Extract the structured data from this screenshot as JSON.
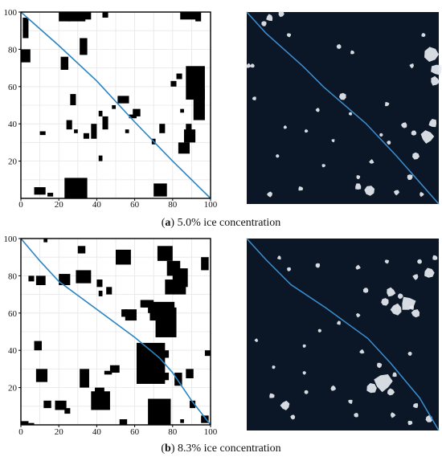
{
  "figure": {
    "panels": [
      {
        "id": "a",
        "caption_label": "a",
        "caption_text": "5.0% ice concentration",
        "grid_chart": {
          "type": "scatter",
          "xlim": [
            0,
            100
          ],
          "ylim": [
            0,
            100
          ],
          "x_ticks": [
            "0",
            "20",
            "40",
            "60",
            "80",
            "100"
          ],
          "y_ticks": [
            "20",
            "40",
            "60",
            "80",
            "100"
          ],
          "grid": true,
          "path": [
            [
              0,
              100
            ],
            [
              20,
              82
            ],
            [
              40,
              63
            ],
            [
              60,
              41
            ],
            [
              80,
              20
            ],
            [
              100,
              0
            ]
          ],
          "obstacles": [
            [
              1,
              97,
              4,
              86
            ],
            [
              0,
              80,
              5,
              73
            ],
            [
              20,
              100,
              26,
              95
            ],
            [
              25,
              100,
              34,
              95
            ],
            [
              33,
              100,
              37,
              96
            ],
            [
              43,
              100,
              46,
              97
            ],
            [
              84,
              100,
              93,
              96
            ],
            [
              92,
              100,
              95,
              95
            ],
            [
              31,
              86,
              35,
              77
            ],
            [
              21,
              76,
              25,
              69
            ],
            [
              26,
              56,
              29,
              50
            ],
            [
              24,
              42,
              27,
              37
            ],
            [
              28,
              37,
              30,
              35
            ],
            [
              33,
              35,
              36,
              32
            ],
            [
              37,
              40,
              40,
              32
            ],
            [
              41,
              47,
              43,
              44
            ],
            [
              43,
              44,
              46,
              37
            ],
            [
              48,
              50,
              50,
              48
            ],
            [
              51,
              55,
              57,
              51
            ],
            [
              55,
              37,
              57,
              35
            ],
            [
              59,
              48,
              63,
              44
            ],
            [
              57,
              45,
              61,
              43
            ],
            [
              69,
              32,
              71,
              29
            ],
            [
              73,
              40,
              76,
              35
            ],
            [
              82,
              67,
              85,
              64
            ],
            [
              79,
              63,
              82,
              60
            ],
            [
              84,
              48,
              86,
              46
            ],
            [
              87,
              40,
              90,
              33
            ],
            [
              86,
              37,
              92,
              30
            ],
            [
              83,
              30,
              89,
              24
            ],
            [
              87,
              71,
              97,
              53
            ],
            [
              91,
              59,
              97,
              42
            ],
            [
              10,
              36,
              13,
              34
            ],
            [
              41,
              23,
              43,
              20
            ],
            [
              7,
              6,
              13,
              2
            ],
            [
              14,
              3,
              17,
              1
            ],
            [
              23,
              11,
              35,
              0
            ],
            [
              70,
              8,
              77,
              1
            ]
          ]
        },
        "satellite": {
          "path": [
            [
              0,
              100
            ],
            [
              10,
              89
            ],
            [
              29,
              72
            ],
            [
              40,
              61
            ],
            [
              62,
              42
            ],
            [
              78,
              25
            ],
            [
              100,
              0
            ]
          ],
          "floes": [
            [
              12,
              97,
              0.9
            ],
            [
              18,
              99,
              0.7
            ],
            [
              9,
              94,
              0.6
            ],
            [
              1,
              72,
              0.5
            ],
            [
              22,
              88,
              0.4
            ],
            [
              48,
              82,
              0.5
            ],
            [
              55,
              79,
              0.4
            ],
            [
              86,
              72,
              0.5
            ],
            [
              92,
              88,
              0.4
            ],
            [
              96,
              78,
              2.1
            ],
            [
              99,
              70,
              1.6
            ],
            [
              98,
              64,
              1.2
            ],
            [
              50,
              56,
              0.9
            ],
            [
              37,
              49,
              0.4
            ],
            [
              73,
              52,
              0.5
            ],
            [
              82,
              41,
              0.7
            ],
            [
              87,
              37,
              0.6
            ],
            [
              94,
              35,
              1.8
            ],
            [
              97,
              42,
              1.1
            ],
            [
              88,
              25,
              0.9
            ],
            [
              85,
              14,
              0.7
            ],
            [
              65,
              22,
              0.5
            ],
            [
              58,
              14,
              0.4
            ],
            [
              64,
              7,
              1.4
            ],
            [
              58,
              9,
              0.8
            ],
            [
              78,
              6,
              0.6
            ],
            [
              3,
              72,
              0.4
            ],
            [
              31,
              38,
              0.3
            ],
            [
              45,
              33,
              0.3
            ],
            [
              20,
              40,
              0.3
            ],
            [
              70,
              36,
              0.3
            ],
            [
              12,
              5,
              0.6
            ],
            [
              28,
              8,
              0.5
            ],
            [
              74,
              32,
              0.4
            ],
            [
              54,
              47,
              0.3
            ],
            [
              91,
              5,
              0.5
            ],
            [
              4,
              55,
              0.4
            ],
            [
              16,
              25,
              0.3
            ],
            [
              40,
              20,
              0.3
            ]
          ]
        }
      },
      {
        "id": "b",
        "caption_label": "b",
        "caption_text": "8.3% ice concentration",
        "grid_chart": {
          "type": "scatter",
          "xlim": [
            0,
            100
          ],
          "ylim": [
            0,
            100
          ],
          "x_ticks": [
            "0",
            "20",
            "40",
            "60",
            "80",
            "100"
          ],
          "y_ticks": [
            "20",
            "40",
            "60",
            "80",
            "100"
          ],
          "grid": true,
          "path": [
            [
              0,
              100
            ],
            [
              10,
              88
            ],
            [
              20,
              77
            ],
            [
              40,
              62
            ],
            [
              60,
              47
            ],
            [
              73,
              36
            ],
            [
              80,
              28
            ],
            [
              90,
              13
            ],
            [
              100,
              0
            ]
          ],
          "obstacles": [
            [
              12,
              100,
              14,
              98
            ],
            [
              30,
              96,
              34,
              92
            ],
            [
              50,
              94,
              58,
              86
            ],
            [
              72,
              96,
              80,
              88
            ],
            [
              95,
              90,
              99,
              83
            ],
            [
              4,
              80,
              7,
              77
            ],
            [
              8,
              80,
              13,
              75
            ],
            [
              20,
              81,
              26,
              75
            ],
            [
              29,
              83,
              37,
              76
            ],
            [
              40,
              78,
              43,
              74
            ],
            [
              45,
              74,
              48,
              70
            ],
            [
              41,
              72,
              43,
              69
            ],
            [
              53,
              62,
              56,
              58
            ],
            [
              55,
              62,
              61,
              56
            ],
            [
              63,
              67,
              68,
              63
            ],
            [
              67,
              63,
              71,
              60
            ],
            [
              64,
              67,
              70,
              63
            ],
            [
              68,
              66,
              81,
              56
            ],
            [
              71,
              63,
              82,
              47
            ],
            [
              77,
              88,
              84,
              80
            ],
            [
              82,
              84,
              88,
              74
            ],
            [
              76,
              78,
              81,
              70
            ],
            [
              80,
              82,
              87,
              70
            ],
            [
              31,
              30,
              36,
              20
            ],
            [
              37,
              18,
              47,
              8
            ],
            [
              39,
              20,
              44,
              12
            ],
            [
              47,
              32,
              52,
              28
            ],
            [
              44,
              29,
              48,
              27
            ],
            [
              61,
              44,
              76,
              22
            ],
            [
              7,
              45,
              11,
              40
            ],
            [
              8,
              30,
              14,
              23
            ],
            [
              12,
              13,
              16,
              9
            ],
            [
              20,
              11,
              22,
              9
            ],
            [
              23,
              9,
              26,
              6
            ],
            [
              18,
              13,
              24,
              8
            ],
            [
              52,
              3,
              56,
              0
            ],
            [
              67,
              14,
              79,
              0
            ],
            [
              75,
              28,
              78,
              24
            ],
            [
              74,
              40,
              78,
              36
            ],
            [
              81,
              28,
              85,
              21
            ],
            [
              87,
              30,
              91,
              25
            ],
            [
              89,
              13,
              92,
              9
            ],
            [
              84,
              3,
              86,
              1
            ],
            [
              95,
              5,
              99,
              1
            ],
            [
              97,
              40,
              100,
              37
            ],
            [
              0,
              2,
              4,
              0
            ],
            [
              4,
              1,
              7,
              0
            ]
          ]
        },
        "satellite": {
          "path": [
            [
              0,
              100
            ],
            [
              10,
              89
            ],
            [
              23,
              76
            ],
            [
              41,
              64
            ],
            [
              63,
              48
            ],
            [
              75,
              35
            ],
            [
              90,
              17
            ],
            [
              100,
              0
            ]
          ],
          "floes": [
            [
              17,
              90,
              0.4
            ],
            [
              22,
              84,
              0.4
            ],
            [
              37,
              86,
              0.5
            ],
            [
              58,
              85,
              0.5
            ],
            [
              73,
              88,
              0.4
            ],
            [
              90,
              88,
              0.5
            ],
            [
              98,
              90,
              0.6
            ],
            [
              88,
              80,
              0.7
            ],
            [
              95,
              82,
              1.4
            ],
            [
              80,
              70,
              0.6
            ],
            [
              86,
              64,
              0.5
            ],
            [
              75,
              72,
              1.2
            ],
            [
              72,
              67,
              1.0
            ],
            [
              78,
              63,
              1.6
            ],
            [
              84,
              66,
              2.2
            ],
            [
              88,
              61,
              1.1
            ],
            [
              62,
              73,
              0.6
            ],
            [
              58,
              60,
              0.4
            ],
            [
              48,
              56,
              0.4
            ],
            [
              38,
              52,
              0.3
            ],
            [
              30,
              44,
              0.3
            ],
            [
              60,
              41,
              0.5
            ],
            [
              69,
              34,
              0.6
            ],
            [
              85,
              40,
              0.4
            ],
            [
              77,
              29,
              0.5
            ],
            [
              71,
              25,
              2.6
            ],
            [
              65,
              22,
              1.4
            ],
            [
              75,
              20,
              0.9
            ],
            [
              54,
              15,
              0.5
            ],
            [
              45,
              22,
              0.6
            ],
            [
              31,
              20,
              0.4
            ],
            [
              20,
              13,
              1.2
            ],
            [
              13,
              18,
              0.6
            ],
            [
              24,
              7,
              0.5
            ],
            [
              57,
              8,
              0.5
            ],
            [
              76,
              8,
              0.6
            ],
            [
              88,
              13,
              0.6
            ],
            [
              95,
              6,
              0.9
            ],
            [
              85,
              4,
              0.5
            ],
            [
              5,
              47,
              0.3
            ],
            [
              14,
              33,
              0.3
            ],
            [
              30,
              30,
              0.3
            ]
          ]
        }
      }
    ],
    "colors": {
      "path": "#2a84c3",
      "obstacle": "#000000",
      "grid": "#e6e6e6",
      "axes": "#000000",
      "ocean": "#0b1627",
      "ice": "#e8edf2",
      "satellite_path": "#3c8fd0"
    }
  }
}
